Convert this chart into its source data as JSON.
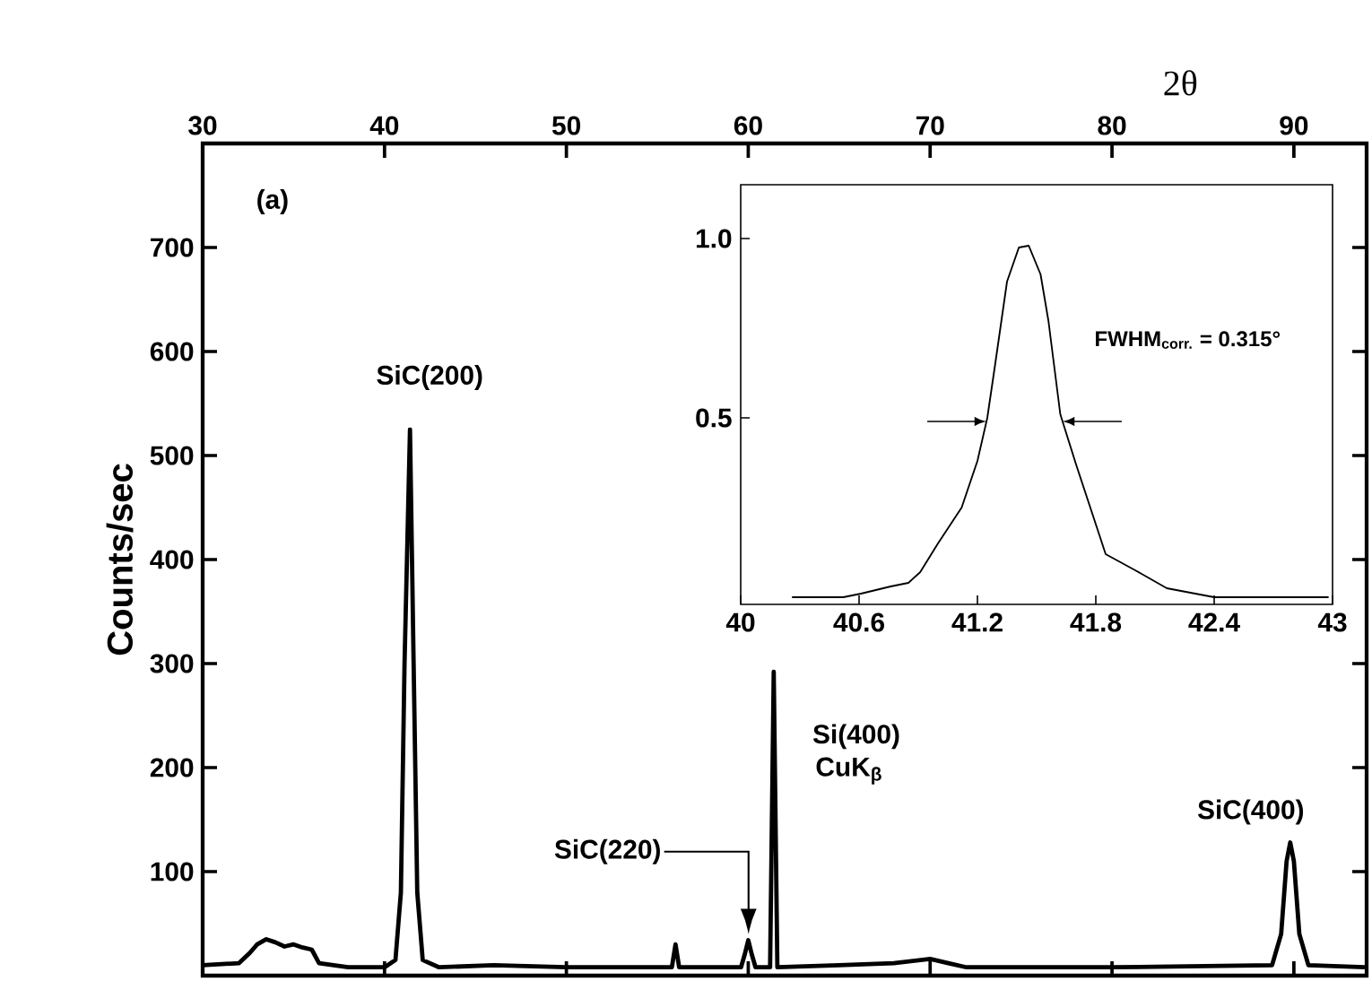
{
  "chart_data": [
    {
      "type": "line",
      "xlabel": "2θ",
      "ylabel": "Counts/sec",
      "xlim": [
        30,
        94
      ],
      "ylim": [
        0,
        800
      ],
      "xticks": [
        30,
        40,
        50,
        60,
        70,
        80,
        90
      ],
      "yticks": [
        100,
        200,
        300,
        400,
        500,
        600,
        700
      ],
      "x": [
        30.0,
        32.0,
        32.6,
        33.0,
        33.5,
        34.0,
        34.5,
        35.0,
        35.5,
        36.0,
        36.4,
        38.0,
        40.0,
        40.6,
        40.9,
        41.1,
        41.4,
        41.6,
        41.8,
        42.1,
        43.0,
        46.0,
        50.0,
        55.8,
        56.0,
        56.2,
        59.6,
        59.8,
        60.0,
        60.2,
        60.4,
        61.2,
        61.4,
        61.6,
        65.0,
        68.0,
        70.0,
        71.0,
        72.0,
        80.0,
        88.8,
        89.3,
        89.6,
        89.8,
        90.0,
        90.3,
        90.8,
        93.9
      ],
      "series": [
        {
          "color": "#000000",
          "values": [
            10,
            12,
            22,
            30,
            35,
            32,
            28,
            30,
            27,
            25,
            12,
            8,
            8,
            15,
            80,
            300,
            525,
            300,
            80,
            15,
            8,
            10,
            8,
            8,
            30,
            8,
            8,
            20,
            34,
            20,
            8,
            8,
            292,
            8,
            10,
            12,
            16,
            12,
            8,
            8,
            10,
            40,
            110,
            128,
            110,
            40,
            10,
            8
          ]
        }
      ],
      "annotations": [
        "(a)",
        {
          "text": "SiC(200)",
          "x": 41.4,
          "y": 525
        },
        "SiC(220)",
        {
          "text": "Si(400)",
          "x": 61.4,
          "y": 292
        },
        "CuK$_{β}$",
        {
          "text": "SiC(400)",
          "x": 89.8,
          "y": 128
        }
      ]
    },
    {
      "type": "line",
      "xlim": [
        40,
        43
      ],
      "ylim": [
        -0.02,
        1.15
      ],
      "xticks": [
        40,
        40.6,
        41.2,
        41.8,
        42.4,
        43
      ],
      "yticks": [
        {
          "value": 0.5,
          "label": "0.5"
        },
        {
          "value": 1.0,
          "label": "1.0"
        }
      ],
      "x": [
        40.26,
        40.52,
        40.61,
        40.76,
        40.85,
        40.91,
        41.0,
        41.12,
        41.2,
        41.25,
        41.29,
        41.35,
        41.41,
        41.46,
        41.52,
        41.56,
        41.62,
        41.7,
        41.76,
        41.85,
        42.0,
        42.16,
        42.4,
        42.64,
        42.98
      ],
      "series": [
        {
          "color": "#000000",
          "values": [
            0.0,
            0.0,
            0.01,
            0.03,
            0.04,
            0.07,
            0.15,
            0.25,
            0.38,
            0.5,
            0.65,
            0.88,
            0.975,
            0.98,
            0.9,
            0.77,
            0.51,
            0.37,
            0.27,
            0.12,
            0.075,
            0.025,
            0.0,
            0.0,
            0.0
          ]
        }
      ],
      "annotations": [
        "FWHM$_{corr.}$ = 0.315°"
      ]
    }
  ]
}
